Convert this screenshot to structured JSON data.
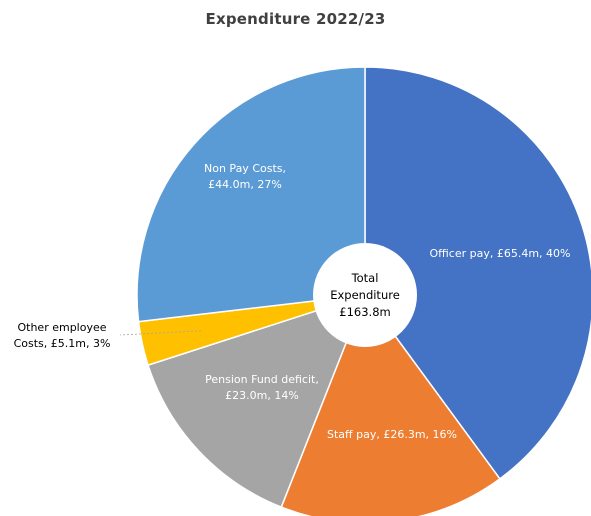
{
  "chart_data": {
    "type": "pie",
    "title": "Expenditure 2022/23",
    "center_label": [
      "Total",
      "Expenditure",
      "£163.8m"
    ],
    "slices": [
      {
        "name": "Officer pay",
        "value": 65.4,
        "percent": 40,
        "color": "#4472C4",
        "label": [
          "Officer pay, £65.4m, 40%"
        ],
        "label_color": "#ffffff"
      },
      {
        "name": "Staff pay",
        "value": 26.3,
        "percent": 16,
        "color": "#ED7D31",
        "label": [
          "Staff pay, £26.3m, 16%"
        ],
        "label_color": "#ffffff"
      },
      {
        "name": "Pension Fund deficit",
        "value": 23.0,
        "percent": 14,
        "color": "#A5A5A5",
        "label": [
          "Pension Fund deficit,",
          "£23.0m, 14%"
        ],
        "label_color": "#ffffff"
      },
      {
        "name": "Other employee Costs",
        "value": 5.1,
        "percent": 3,
        "color": "#FFC000",
        "label": [
          "Other employee",
          "Costs, £5.1m, 3%"
        ],
        "label_color": "#000000"
      },
      {
        "name": "Non Pay Costs",
        "value": 44.0,
        "percent": 27,
        "color": "#5B9BD5",
        "label": [
          "Non Pay Costs,",
          "£44.0m, 27%"
        ],
        "label_color": "#ffffff"
      }
    ]
  }
}
